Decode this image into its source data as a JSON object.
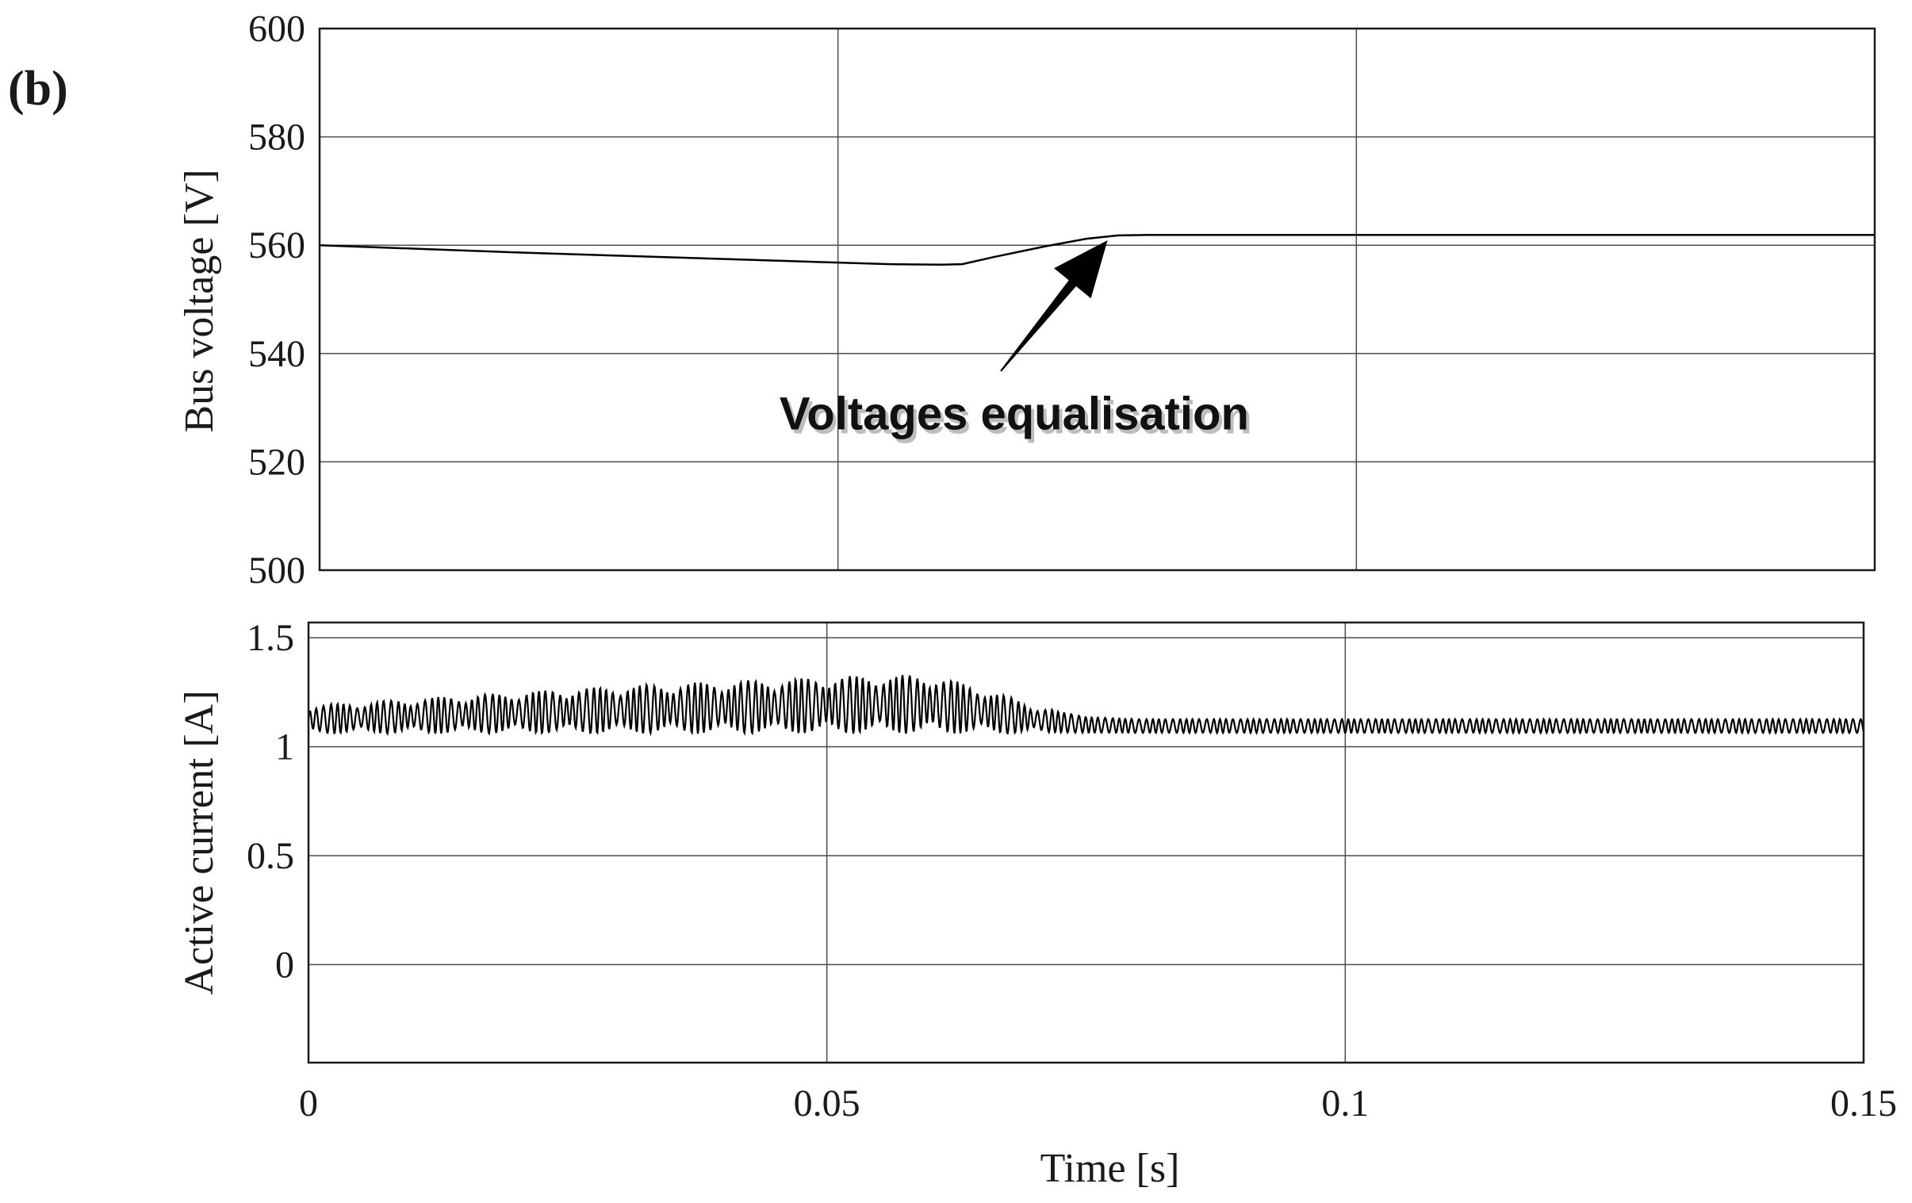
{
  "figure": {
    "panel_tag": "(b)",
    "shared_xlabel": "Time [s]"
  },
  "colors": {
    "background": "#ffffff",
    "frame": "#1a1a1a",
    "grid": "#4d4d4d",
    "trace": "#000000"
  },
  "chart_data": [
    {
      "type": "line",
      "title": "",
      "xlabel": "",
      "ylabel": "Bus voltage [V]",
      "xlim": [
        0,
        0.15
      ],
      "ylim": [
        500,
        600
      ],
      "x_ticks": [
        0,
        0.05,
        0.1,
        0.15
      ],
      "y_ticks": [
        500,
        520,
        540,
        560,
        580,
        600
      ],
      "y_tick_labels": [
        "500",
        "520",
        "540",
        "560",
        "580",
        "600"
      ],
      "grid": true,
      "x_tick_labels_shown": false,
      "series": [
        {
          "x": [
            0,
            0.01,
            0.02,
            0.03,
            0.04,
            0.05,
            0.055,
            0.06,
            0.062,
            0.065,
            0.07,
            0.074,
            0.077,
            0.08,
            0.09,
            0.1,
            0.12,
            0.15
          ],
          "y": [
            560,
            559.3,
            558.6,
            558,
            557.4,
            556.8,
            556.5,
            556.4,
            556.5,
            557.8,
            559.8,
            561.2,
            561.8,
            561.9,
            561.9,
            561.9,
            561.9,
            561.9
          ]
        }
      ],
      "annotations": [
        {
          "text": "Voltages equalisation",
          "x": 0.067,
          "y": 526,
          "arrow_to": [
            0.076,
            561.5
          ]
        }
      ]
    },
    {
      "type": "line",
      "title": "",
      "xlabel": "Time [s]",
      "ylabel": "Active current [A]",
      "xlim": [
        0,
        0.15
      ],
      "ylim": [
        -0.45,
        1.57
      ],
      "x_ticks": [
        0,
        0.05,
        0.1,
        0.15
      ],
      "x_tick_labels": [
        "0",
        "0.05",
        "0.1",
        "0.15"
      ],
      "y_ticks": [
        0,
        0.5,
        1,
        1.5
      ],
      "y_tick_labels": [
        "0",
        "0.5",
        "1",
        "1.5"
      ],
      "grid": true,
      "series": [
        {
          "x": [
            0,
            0.01,
            0.02,
            0.03,
            0.04,
            0.05,
            0.055,
            0.06,
            0.065,
            0.07,
            0.075,
            0.08,
            0.09,
            0.1,
            0.12,
            0.15
          ],
          "y_upper": [
            1.19,
            1.22,
            1.25,
            1.28,
            1.3,
            1.32,
            1.33,
            1.33,
            1.27,
            1.19,
            1.14,
            1.13,
            1.13,
            1.13,
            1.13,
            1.13
          ],
          "y_lower": [
            1.06,
            1.06,
            1.06,
            1.06,
            1.06,
            1.06,
            1.06,
            1.06,
            1.06,
            1.06,
            1.06,
            1.06,
            1.06,
            1.06,
            1.06,
            1.06
          ],
          "y_mean": [
            1.13,
            1.14,
            1.155,
            1.17,
            1.18,
            1.19,
            1.195,
            1.195,
            1.165,
            1.125,
            1.1,
            1.095,
            1.095,
            1.095,
            1.095,
            1.095
          ]
        }
      ]
    }
  ]
}
